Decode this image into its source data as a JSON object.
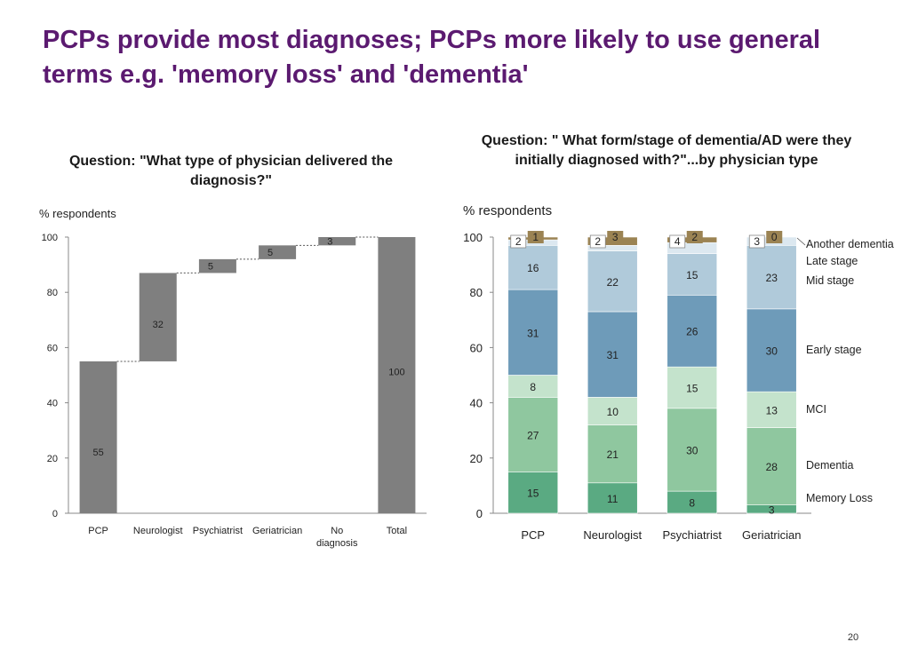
{
  "slide": {
    "title": "PCPs provide most diagnoses; PCPs more likely to use general terms e.g. 'memory loss' and 'dementia'",
    "page_number": "20"
  },
  "chart_data": [
    {
      "type": "bar",
      "subtype": "waterfall",
      "title": "Question: \"What type of physician delivered the diagnosis?\"",
      "ylabel": "% respondents",
      "ylim": [
        0,
        100
      ],
      "yticks": [
        0,
        20,
        40,
        60,
        80,
        100
      ],
      "categories": [
        "PCP",
        "Neurologist",
        "Psychiatrist",
        "Geriatrician",
        "No diagnosis",
        "Total"
      ],
      "values": [
        55,
        32,
        5,
        5,
        3,
        100
      ],
      "color": "#7f7f7f"
    },
    {
      "type": "bar",
      "subtype": "stacked-100",
      "title": "Question: \" What form/stage of dementia/AD were they initially diagnosed with?\"...by physician type",
      "ylabel": "% respondents",
      "ylim": [
        0,
        100
      ],
      "yticks": [
        0,
        20,
        40,
        60,
        80,
        100
      ],
      "categories": [
        "PCP",
        "Neurologist",
        "Psychiatrist",
        "Geriatrician"
      ],
      "series": [
        {
          "name": "Memory Loss",
          "values": [
            15,
            11,
            8,
            3
          ],
          "color": "#5aaa82"
        },
        {
          "name": "Dementia",
          "values": [
            27,
            21,
            30,
            28
          ],
          "color": "#8fc79f"
        },
        {
          "name": "MCI",
          "values": [
            8,
            10,
            15,
            13
          ],
          "color": "#c4e3cc"
        },
        {
          "name": "Early stage",
          "values": [
            31,
            31,
            26,
            30
          ],
          "color": "#6e9bb9"
        },
        {
          "name": "Mid stage",
          "values": [
            16,
            22,
            15,
            23
          ],
          "color": "#b0cada"
        },
        {
          "name": "Late stage",
          "values": [
            2,
            2,
            4,
            3
          ],
          "color": "#dce8f0"
        },
        {
          "name": "Another dementia",
          "values": [
            1,
            3,
            2,
            0
          ],
          "color": "#9b8353"
        }
      ],
      "legend_position": "right"
    }
  ]
}
